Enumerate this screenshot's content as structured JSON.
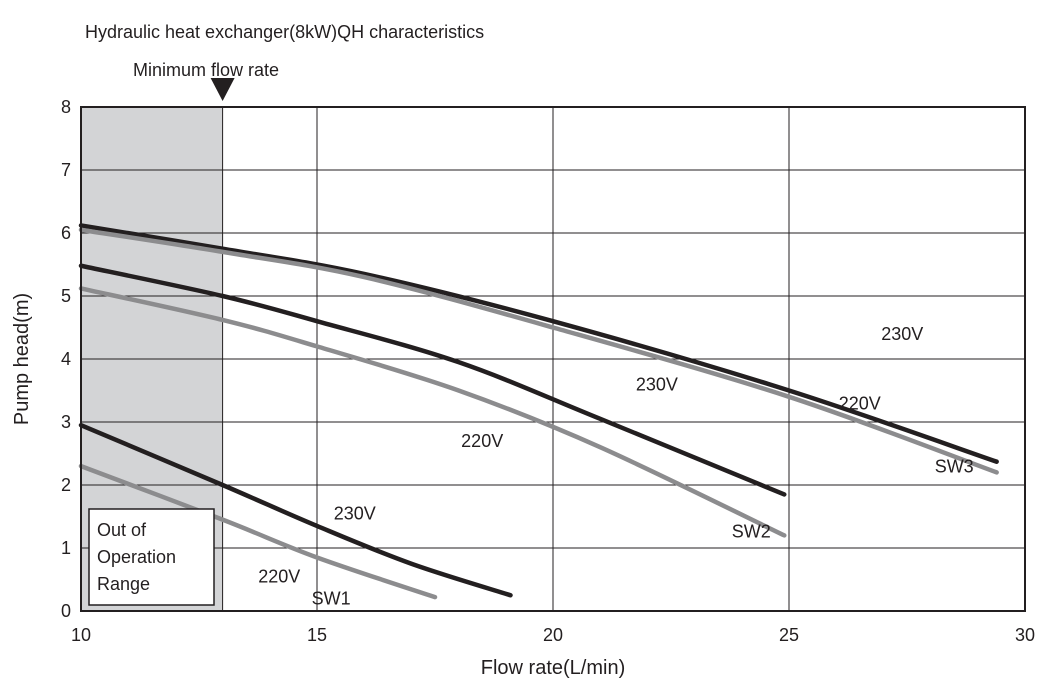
{
  "chart_data": {
    "type": "line",
    "title": "Hydraulic heat exchanger(8kW)QH characteristics",
    "xlabel": "Flow rate(L/min)",
    "ylabel": "Pump head(m)",
    "xlim": [
      10,
      30
    ],
    "ylim": [
      0,
      8
    ],
    "xticks": [
      "10",
      "15",
      "20",
      "25",
      "30"
    ],
    "yticks": [
      "0",
      "1",
      "2",
      "3",
      "4",
      "5",
      "6",
      "7",
      "8"
    ],
    "grid": true,
    "min_flow": {
      "label": "Minimum flow rate",
      "x": 13
    },
    "out_of_range_label": [
      "Out of",
      "Operation",
      "Range"
    ],
    "series": [
      {
        "name": "SW3 230V",
        "color": "#231f20",
        "x": [
          10,
          13,
          16,
          20,
          25,
          29.4
        ],
        "y": [
          6.12,
          5.75,
          5.35,
          4.6,
          3.5,
          2.37
        ]
      },
      {
        "name": "SW3 220V",
        "color": "#8c8c8e",
        "x": [
          10,
          13,
          16,
          20,
          25,
          29.4
        ],
        "y": [
          6.05,
          5.7,
          5.3,
          4.5,
          3.4,
          2.2
        ]
      },
      {
        "name": "SW2 230V",
        "color": "#231f20",
        "x": [
          10,
          13,
          15,
          18,
          21,
          24.9
        ],
        "y": [
          5.48,
          5.0,
          4.6,
          3.95,
          3.05,
          1.85
        ]
      },
      {
        "name": "SW2 220V",
        "color": "#8c8c8e",
        "x": [
          10,
          13,
          15,
          18,
          21,
          24.9
        ],
        "y": [
          5.12,
          4.62,
          4.2,
          3.5,
          2.6,
          1.2
        ]
      },
      {
        "name": "SW1 230V",
        "color": "#231f20",
        "x": [
          10,
          13,
          15,
          17,
          19.1
        ],
        "y": [
          2.95,
          2.0,
          1.35,
          0.75,
          0.25
        ]
      },
      {
        "name": "SW1 220V",
        "color": "#8c8c8e",
        "x": [
          10,
          13,
          15,
          17.5
        ],
        "y": [
          2.3,
          1.45,
          0.85,
          0.22
        ]
      }
    ],
    "annotations": [
      {
        "text": "230V",
        "x": 27.4,
        "y": 4.3
      },
      {
        "text": "220V",
        "x": 26.5,
        "y": 3.2
      },
      {
        "text": "SW3",
        "x": 28.5,
        "y": 2.2
      },
      {
        "text": "230V",
        "x": 22.2,
        "y": 3.5
      },
      {
        "text": "220V",
        "x": 18.5,
        "y": 2.6
      },
      {
        "text": "SW2",
        "x": 24.2,
        "y": 1.17
      },
      {
        "text": "230V",
        "x": 15.8,
        "y": 1.45
      },
      {
        "text": "220V",
        "x": 14.2,
        "y": 0.45
      },
      {
        "text": "SW1",
        "x": 15.3,
        "y": 0.1
      }
    ]
  }
}
